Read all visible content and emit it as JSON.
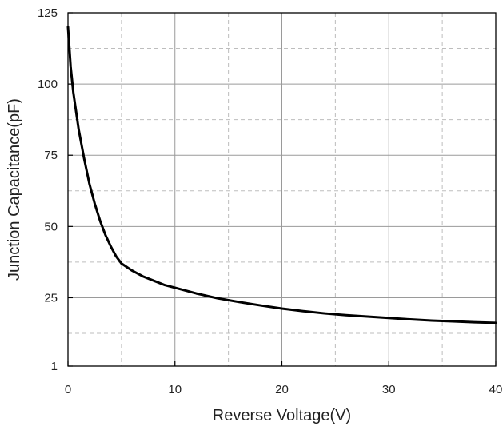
{
  "chart_data": {
    "type": "line",
    "title": "",
    "xlabel": "Reverse Voltage(V)",
    "ylabel": "Junction Capacitance(pF)",
    "xlim": [
      0,
      40
    ],
    "ylim": [
      1,
      125
    ],
    "x_ticks": [
      0,
      10,
      20,
      30,
      40
    ],
    "x_tick_labels": [
      "0",
      "10",
      "20",
      "30",
      "40"
    ],
    "y_ticks": [
      1,
      25,
      50,
      75,
      100,
      125
    ],
    "y_tick_labels": [
      "1",
      "25",
      "50",
      "75",
      "100",
      "125"
    ],
    "x_minor_grid": [
      5,
      15,
      25,
      35
    ],
    "y_minor_grid": [
      12.5,
      37.5,
      62.5,
      87.5,
      112.5
    ],
    "grid": true,
    "legend": "none",
    "series_color": "#000000",
    "series": [
      {
        "x": [
          0,
          0.25,
          0.5,
          1,
          1.5,
          2,
          2.5,
          3,
          3.5,
          4,
          4.5,
          5,
          6,
          7,
          8,
          9,
          10,
          12,
          14,
          16,
          18,
          20,
          22,
          24,
          26,
          28,
          30,
          32,
          34,
          36,
          38,
          40
        ],
        "values": [
          120,
          106,
          97,
          84,
          74,
          65,
          58,
          52,
          47,
          43,
          39.5,
          37,
          34.5,
          32.5,
          31,
          29.5,
          28.5,
          26.5,
          24.8,
          23.5,
          22.3,
          21.2,
          20.3,
          19.5,
          18.9,
          18.4,
          17.9,
          17.4,
          17.0,
          16.7,
          16.4,
          16.2
        ]
      }
    ]
  }
}
